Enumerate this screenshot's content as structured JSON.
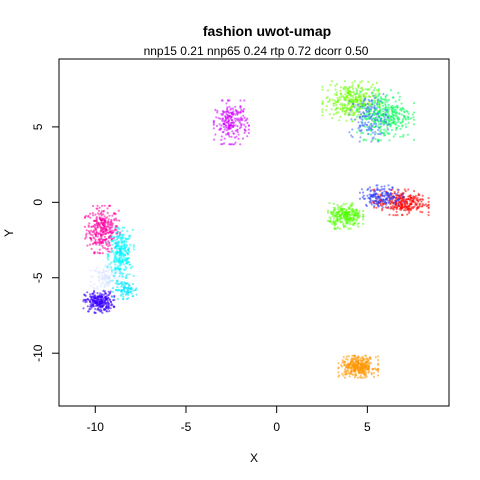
{
  "chart_data": {
    "type": "scatter",
    "title": "fashion uwot-umap",
    "subtitle": "nnp15 0.21 nnp65 0.24 rtp 0.72 dcorr 0.50",
    "xlabel": "X",
    "ylabel": "Y",
    "xlim": [
      -12,
      9.5
    ],
    "ylim": [
      -13.5,
      9.5
    ],
    "xticks": [
      -10,
      -5,
      0,
      5
    ],
    "yticks": [
      -10,
      -5,
      0,
      5
    ],
    "grid": false,
    "legend": "none",
    "clusters": [
      {
        "color": "#ff00a0",
        "center": [
          -9.6,
          -1.8
        ],
        "spread": [
          0.8,
          1.3
        ],
        "count": 320
      },
      {
        "color": "#00f5ff",
        "center": [
          -8.6,
          -3.5
        ],
        "spread": [
          0.6,
          1.5
        ],
        "count": 280
      },
      {
        "color": "#ffffff",
        "center": [
          -9.4,
          -5.0
        ],
        "spread": [
          0.7,
          0.8
        ],
        "count": 120
      },
      {
        "color": "#3a00ff",
        "center": [
          -9.8,
          -6.6
        ],
        "spread": [
          0.7,
          0.6
        ],
        "count": 260
      },
      {
        "color": "#00e5ff",
        "center": [
          -8.3,
          -5.8
        ],
        "spread": [
          0.6,
          0.5
        ],
        "count": 90
      },
      {
        "color": "#d000ff",
        "center": [
          -2.5,
          5.3
        ],
        "spread": [
          0.8,
          1.2
        ],
        "count": 220
      },
      {
        "color": "#6cff00",
        "center": [
          4.1,
          6.7
        ],
        "spread": [
          1.3,
          1.1
        ],
        "count": 320
      },
      {
        "color": "#00ff55",
        "center": [
          6.0,
          5.8
        ],
        "spread": [
          1.3,
          1.4
        ],
        "count": 340
      },
      {
        "color": "#4070ff",
        "center": [
          5.1,
          5.6
        ],
        "spread": [
          0.9,
          1.3
        ],
        "count": 150
      },
      {
        "color": "#ff0000",
        "center": [
          6.8,
          0.0
        ],
        "spread": [
          1.3,
          0.7
        ],
        "count": 300
      },
      {
        "color": "#2a40ff",
        "center": [
          5.8,
          0.4
        ],
        "spread": [
          1.0,
          0.6
        ],
        "count": 160
      },
      {
        "color": "#50ff00",
        "center": [
          3.8,
          -0.9
        ],
        "spread": [
          0.8,
          0.7
        ],
        "count": 260
      },
      {
        "color": "#ff9500",
        "center": [
          4.5,
          -10.9
        ],
        "spread": [
          0.9,
          0.6
        ],
        "count": 340
      }
    ]
  }
}
